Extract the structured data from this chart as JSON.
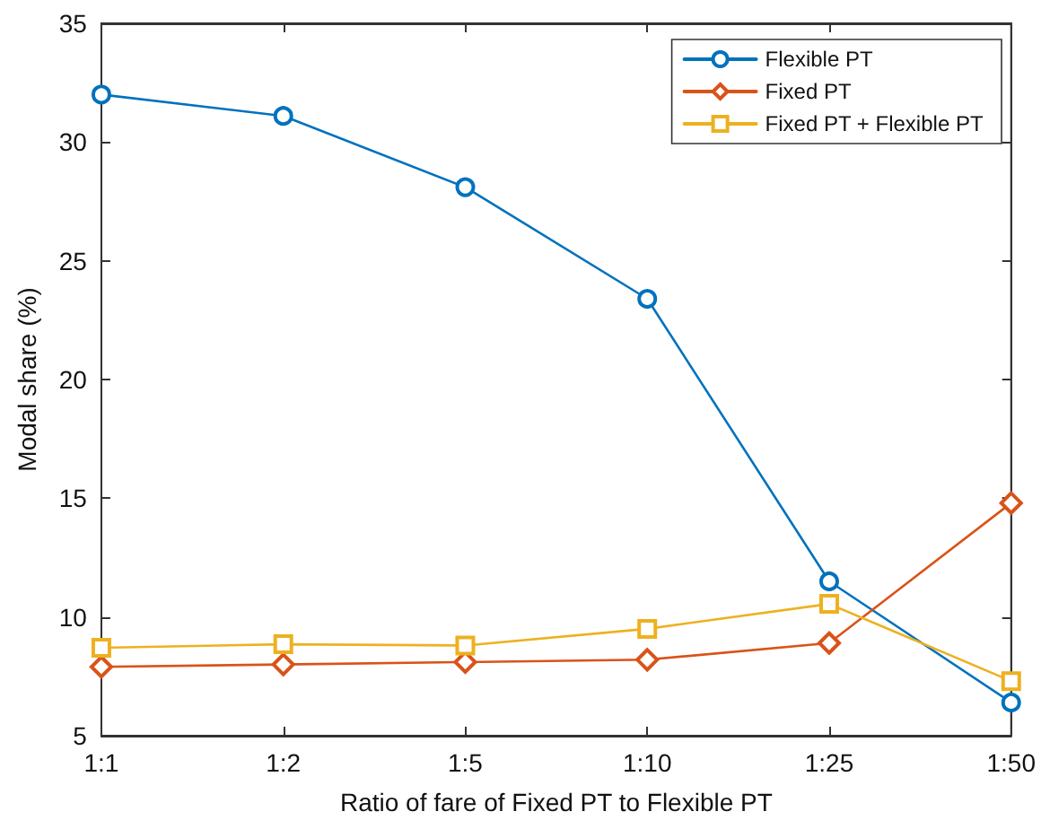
{
  "chart_data": {
    "type": "line",
    "xlabel": "Ratio of fare of Fixed PT to Flexible PT",
    "ylabel": "Modal share (%)",
    "categories": [
      "1:1",
      "1:2",
      "1:5",
      "1:10",
      "1:25",
      "1:50"
    ],
    "series": [
      {
        "name": "Flexible PT",
        "color": "#0072bd",
        "marker": "circle",
        "values": [
          32.0,
          31.1,
          28.1,
          23.4,
          11.5,
          6.4
        ]
      },
      {
        "name": "Fixed PT",
        "color": "#d95319",
        "marker": "diamond",
        "values": [
          7.9,
          8.0,
          8.1,
          8.2,
          8.9,
          14.8
        ]
      },
      {
        "name": "Fixed PT + Flexible PT",
        "color": "#edb120",
        "marker": "square",
        "values": [
          8.7,
          8.85,
          8.8,
          9.5,
          10.55,
          7.3
        ]
      }
    ],
    "ylim": [
      5,
      35
    ],
    "yticks": [
      5,
      10,
      15,
      20,
      25,
      30,
      35
    ],
    "grid": false,
    "legend": "top right",
    "line_style": "solid"
  }
}
